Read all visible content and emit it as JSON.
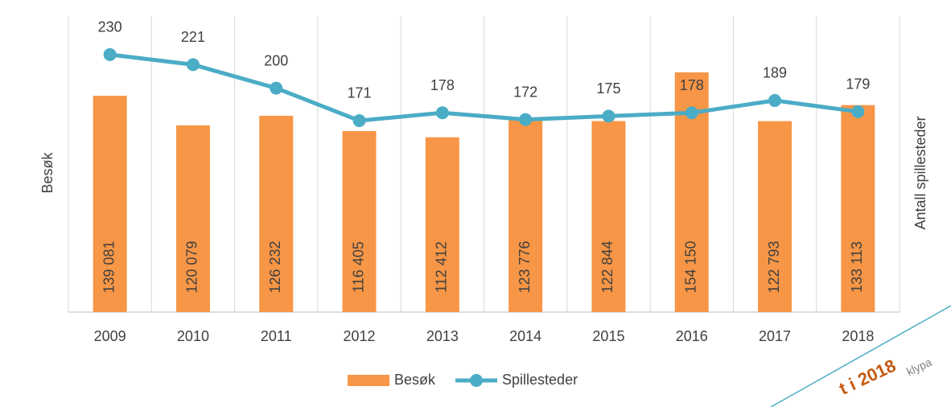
{
  "chart_data": {
    "type": "bar-line",
    "y_label": "Besøk",
    "y2_label": "Antall spillesteder",
    "categories": [
      "2009",
      "2010",
      "2011",
      "2012",
      "2013",
      "2014",
      "2015",
      "2016",
      "2017",
      "2018"
    ],
    "series": [
      {
        "name": "Besøk",
        "type": "bar",
        "color": "#f79646",
        "values": [
          139081,
          120079,
          126232,
          116405,
          112412,
          123776,
          122844,
          154150,
          122793,
          133113
        ],
        "value_labels": [
          "139 081",
          "120 079",
          "126 232",
          "116 405",
          "112 412",
          "123 776",
          "122 844",
          "154 150",
          "122 793",
          "133 113"
        ]
      },
      {
        "name": "Spillesteder",
        "type": "line",
        "axis": "y2",
        "color": "#4bacc6",
        "values": [
          230,
          221,
          200,
          171,
          178,
          172,
          175,
          178,
          189,
          179
        ]
      }
    ],
    "ylim": [
      0,
      180000
    ],
    "y2lim": [
      0,
      250
    ],
    "legend": "bottom",
    "annotations": [
      "t i 2018",
      "klypa"
    ]
  }
}
